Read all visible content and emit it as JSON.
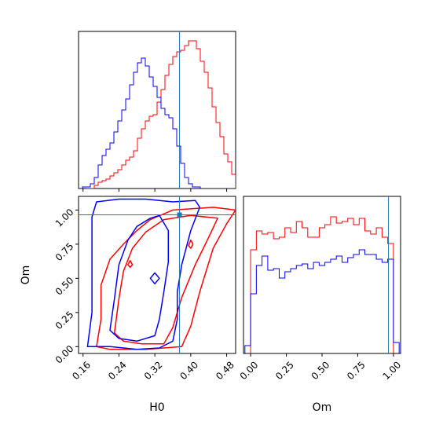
{
  "chart_data": {
    "type": "corner",
    "parameters": [
      "H0",
      "Om"
    ],
    "truth": {
      "H0": 0.375,
      "Om": 0.965
    },
    "colors": {
      "series_a": "#ff0000",
      "series_b": "#0000ff",
      "truth": "#1f77b4"
    },
    "x_axis_labels": {
      "H0": "H0",
      "Om": "Om"
    },
    "y_axis_labels": {
      "Om": "Om"
    },
    "panels": [
      {
        "id": "hist-H0",
        "type": "histogram",
        "xlim": [
          0.15,
          0.5
        ],
        "ylim": [
          0,
          1.0
        ],
        "bin_width": 0.00875,
        "ticks_labeled": false,
        "series": [
          {
            "key": "a",
            "color": "#ff0000",
            "x_start": 0.1675,
            "counts": [
              0.0,
              0.0,
              0.02,
              0.04,
              0.05,
              0.06,
              0.08,
              0.1,
              0.12,
              0.15,
              0.18,
              0.2,
              0.24,
              0.32,
              0.38,
              0.43,
              0.46,
              0.47,
              0.55,
              0.63,
              0.72,
              0.79,
              0.84,
              0.87,
              0.88,
              0.91,
              0.94,
              0.94,
              0.89,
              0.81,
              0.74,
              0.64,
              0.52,
              0.42,
              0.33,
              0.22,
              0.17,
              0.09
            ]
          },
          {
            "key": "b",
            "color": "#0000ff",
            "x_start": 0.15,
            "counts": [
              0,
              0.01,
              0.01,
              0.03,
              0.07,
              0.15,
              0.21,
              0.25,
              0.29,
              0.36,
              0.43,
              0.5,
              0.57,
              0.66,
              0.74,
              0.8,
              0.83,
              0.78,
              0.71,
              0.65,
              0.58,
              0.51,
              0.47,
              0.45,
              0.38,
              0.27,
              0.16,
              0.07,
              0.03,
              0.01,
              0.01,
              0,
              0,
              0,
              0,
              0,
              0,
              0,
              0,
              0
            ]
          }
        ]
      },
      {
        "id": "contour-H0-Om",
        "type": "contour",
        "xlim": [
          0.15,
          0.5
        ],
        "ylim": [
          -0.05,
          1.1
        ],
        "xticks": [
          "0.16",
          "0.24",
          "0.32",
          "0.40",
          "0.48"
        ],
        "xtick_values": [
          0.16,
          0.24,
          0.32,
          0.4,
          0.48
        ],
        "yticks": [
          "0.00",
          "0.25",
          "0.50",
          "0.75",
          "1.00"
        ],
        "ytick_values": [
          0.0,
          0.25,
          0.5,
          0.75,
          1.0
        ],
        "xlabel": "H0",
        "ylabel": "Om",
        "series": [
          {
            "key": "a",
            "color": "#ff0000",
            "levels": [
              [
                [
                  0.19,
                  0.0
                ],
                [
                  0.2,
                  0.2
                ],
                [
                  0.2,
                  0.45
                ],
                [
                  0.22,
                  0.64
                ],
                [
                  0.25,
                  0.75
                ],
                [
                  0.28,
                  0.85
                ],
                [
                  0.31,
                  0.93
                ],
                [
                  0.36,
                  1.0
                ],
                [
                  0.45,
                  1.02
                ],
                [
                  0.5,
                  1.0
                ],
                [
                  0.48,
                  0.9
                ],
                [
                  0.45,
                  0.72
                ],
                [
                  0.42,
                  0.4
                ],
                [
                  0.4,
                  0.15
                ],
                [
                  0.38,
                  0.0
                ],
                [
                  0.3,
                  -0.02
                ],
                [
                  0.22,
                  -0.02
                ],
                [
                  0.19,
                  0.0
                ]
              ],
              [
                [
                  0.23,
                  0.1
                ],
                [
                  0.24,
                  0.35
                ],
                [
                  0.25,
                  0.55
                ],
                [
                  0.27,
                  0.72
                ],
                [
                  0.3,
                  0.84
                ],
                [
                  0.34,
                  0.93
                ],
                [
                  0.4,
                  0.96
                ],
                [
                  0.46,
                  0.94
                ],
                [
                  0.44,
                  0.8
                ],
                [
                  0.41,
                  0.6
                ],
                [
                  0.38,
                  0.36
                ],
                [
                  0.36,
                  0.14
                ],
                [
                  0.34,
                  0.02
                ],
                [
                  0.29,
                  0.02
                ],
                [
                  0.25,
                  0.04
                ],
                [
                  0.23,
                  0.1
                ]
              ],
              [
                [
                  0.395,
                  0.74
                ],
                [
                  0.4,
                  0.78
                ],
                [
                  0.405,
                  0.75
                ],
                [
                  0.4,
                  0.72
                ],
                [
                  0.395,
                  0.74
                ]
              ],
              [
                [
                  0.26,
                  0.6
                ],
                [
                  0.265,
                  0.63
                ],
                [
                  0.27,
                  0.6
                ],
                [
                  0.265,
                  0.58
                ],
                [
                  0.26,
                  0.6
                ]
              ]
            ]
          },
          {
            "key": "b",
            "color": "#0000ff",
            "levels": [
              [
                [
                  0.17,
                  0.0
                ],
                [
                  0.18,
                  0.25
                ],
                [
                  0.18,
                  0.6
                ],
                [
                  0.18,
                  0.95
                ],
                [
                  0.19,
                  1.06
                ],
                [
                  0.24,
                  1.08
                ],
                [
                  0.3,
                  1.08
                ],
                [
                  0.36,
                  1.06
                ],
                [
                  0.41,
                  1.07
                ],
                [
                  0.42,
                  1.02
                ],
                [
                  0.4,
                  0.85
                ],
                [
                  0.38,
                  0.6
                ],
                [
                  0.37,
                  0.4
                ],
                [
                  0.37,
                  0.2
                ],
                [
                  0.36,
                  0.04
                ],
                [
                  0.33,
                  -0.01
                ],
                [
                  0.28,
                  -0.02
                ],
                [
                  0.22,
                  0.0
                ],
                [
                  0.17,
                  0.0
                ]
              ],
              [
                [
                  0.22,
                  0.12
                ],
                [
                  0.23,
                  0.35
                ],
                [
                  0.24,
                  0.6
                ],
                [
                  0.26,
                  0.78
                ],
                [
                  0.28,
                  0.88
                ],
                [
                  0.31,
                  0.94
                ],
                [
                  0.33,
                  0.96
                ],
                [
                  0.35,
                  0.85
                ],
                [
                  0.35,
                  0.62
                ],
                [
                  0.34,
                  0.4
                ],
                [
                  0.33,
                  0.2
                ],
                [
                  0.32,
                  0.08
                ],
                [
                  0.28,
                  0.04
                ],
                [
                  0.24,
                  0.06
                ],
                [
                  0.22,
                  0.12
                ]
              ],
              [
                [
                  0.31,
                  0.5
                ],
                [
                  0.32,
                  0.54
                ],
                [
                  0.33,
                  0.5
                ],
                [
                  0.32,
                  0.46
                ],
                [
                  0.31,
                  0.5
                ]
              ]
            ]
          }
        ]
      },
      {
        "id": "hist-Om",
        "type": "histogram",
        "xlim": [
          -0.05,
          1.05
        ],
        "ylim": [
          0,
          1.0
        ],
        "bin_width": 0.04,
        "xticks": [
          "0.00",
          "0.25",
          "0.50",
          "0.75",
          "1.00"
        ],
        "xtick_values": [
          0.0,
          0.25,
          0.5,
          0.75,
          1.0
        ],
        "xlabel": "Om",
        "series": [
          {
            "key": "a",
            "color": "#ff0000",
            "x_start": 0.0,
            "counts": [
              0.66,
              0.78,
              0.76,
              0.77,
              0.73,
              0.74,
              0.8,
              0.77,
              0.84,
              0.8,
              0.74,
              0.74,
              0.8,
              0.82,
              0.87,
              0.83,
              0.84,
              0.86,
              0.82,
              0.86,
              0.78,
              0.76,
              0.8,
              0.74,
              0.7
            ]
          },
          {
            "key": "b",
            "color": "#0000ff",
            "x_start": -0.04,
            "counts": [
              0.05,
              0.38,
              0.56,
              0.62,
              0.53,
              0.54,
              0.48,
              0.52,
              0.54,
              0.56,
              0.57,
              0.54,
              0.58,
              0.56,
              0.58,
              0.6,
              0.62,
              0.58,
              0.61,
              0.63,
              0.66,
              0.63,
              0.63,
              0.6,
              0.58,
              0.6,
              0.07
            ]
          }
        ]
      }
    ]
  }
}
